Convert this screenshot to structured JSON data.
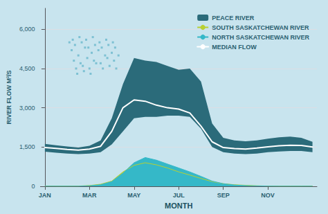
{
  "chart_data": {
    "type": "area",
    "xlabel": "MONTH",
    "ylabel": "RIVER FLOW M³/S",
    "x": [
      0,
      0.5,
      1,
      1.5,
      2,
      2.5,
      3,
      3.5,
      4,
      4.5,
      5,
      5.5,
      6,
      6.5,
      7,
      7.5,
      8,
      8.5,
      9,
      9.5,
      10,
      10.5,
      11,
      11.5,
      12
    ],
    "xlim": [
      -0.2,
      12.2
    ],
    "xticks": [
      {
        "value": 0,
        "label": "JAN"
      },
      {
        "value": 2,
        "label": "MAR"
      },
      {
        "value": 4,
        "label": "MAY"
      },
      {
        "value": 6,
        "label": "JUL"
      },
      {
        "value": 8,
        "label": "SEP"
      },
      {
        "value": 10,
        "label": "NOV"
      }
    ],
    "ylim": [
      0,
      6800
    ],
    "yticks": [
      0,
      {
        "value": 1500,
        "label": "1,500"
      },
      {
        "value": 3000,
        "label": "3,000"
      },
      {
        "value": 4500,
        "label": "4,500"
      },
      {
        "value": 6000,
        "label": "6,000"
      }
    ],
    "grid": true,
    "legend": "upper right",
    "series": [
      {
        "name": "PEACE RIVER",
        "type": "band",
        "color": "#2b6b7a",
        "lower": [
          1320,
          1280,
          1250,
          1230,
          1250,
          1300,
          1600,
          2100,
          2600,
          2650,
          2650,
          2700,
          2700,
          2650,
          2200,
          1500,
          1300,
          1250,
          1230,
          1250,
          1300,
          1330,
          1350,
          1350,
          1300
        ],
        "upper": [
          1620,
          1570,
          1520,
          1480,
          1550,
          1750,
          2600,
          3900,
          4900,
          4800,
          4750,
          4600,
          4450,
          4500,
          4000,
          2400,
          1850,
          1750,
          1720,
          1750,
          1820,
          1870,
          1900,
          1850,
          1700
        ]
      },
      {
        "name": "SOUTH SASKATCHEWAN RIVER",
        "type": "area",
        "color": "#b8d032",
        "values": [
          10,
          8,
          8,
          10,
          30,
          80,
          200,
          550,
          800,
          900,
          820,
          700,
          550,
          430,
          300,
          180,
          100,
          60,
          40,
          20,
          10,
          8,
          8,
          8,
          10
        ]
      },
      {
        "name": "NORTH SASKATCHEWAN RIVER",
        "type": "area",
        "color": "#35b8c8",
        "values": [
          5,
          5,
          5,
          5,
          20,
          60,
          180,
          500,
          900,
          1100,
          1000,
          850,
          700,
          550,
          380,
          200,
          100,
          50,
          25,
          15,
          8,
          5,
          5,
          5,
          5
        ]
      },
      {
        "name": "MEDIAN FLOW",
        "type": "line",
        "color": "#ffffff",
        "values": [
          1480,
          1450,
          1410,
          1380,
          1420,
          1530,
          2100,
          3000,
          3300,
          3250,
          3100,
          3000,
          2950,
          2800,
          2300,
          1700,
          1480,
          1440,
          1420,
          1460,
          1510,
          1550,
          1570,
          1560,
          1500
        ]
      },
      {
        "type": "scatter",
        "color": "#6ab8cc",
        "marker": "square",
        "x": [
          1.2,
          1.5,
          1.8,
          2.1,
          2.4,
          2.7,
          3.0,
          3.3,
          1.3,
          1.6,
          1.9,
          2.2,
          2.5,
          2.8,
          3.1,
          1.4,
          1.7,
          2.0,
          2.3,
          2.6,
          2.9,
          3.2,
          1.1,
          1.35,
          1.65,
          1.95,
          2.25,
          2.55,
          2.85,
          3.15,
          1.25,
          1.55,
          1.85,
          2.15,
          2.45,
          2.75,
          3.05,
          1.45,
          1.75,
          2.05
        ],
        "values": [
          5200,
          5000,
          5300,
          5100,
          5200,
          5000,
          5100,
          5000,
          4800,
          4700,
          4900,
          4800,
          4700,
          4900,
          4800,
          4500,
          4600,
          4500,
          4700,
          4500,
          4600,
          4500,
          5500,
          5400,
          5500,
          5300,
          5400,
          5300,
          5400,
          5300,
          5600,
          5700,
          5600,
          5700,
          5500,
          5600,
          5500,
          4300,
          4400,
          4300
        ]
      }
    ]
  }
}
